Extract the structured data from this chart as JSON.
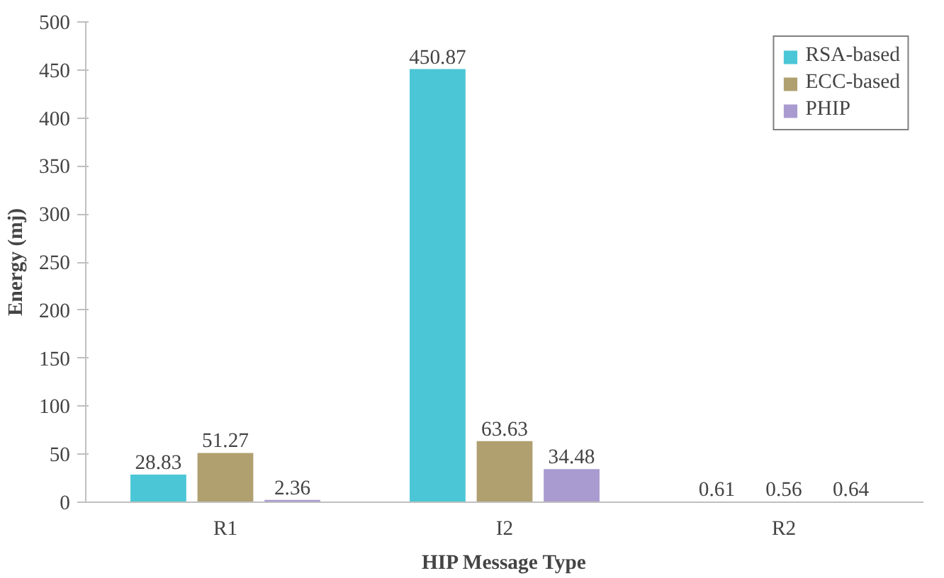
{
  "chart_data": {
    "type": "bar",
    "xlabel": "HIP Message Type",
    "ylabel": "Energy (mj)",
    "categories": [
      "R1",
      "I2",
      "R2"
    ],
    "series": [
      {
        "name": "RSA-based",
        "color": "#4bc6d6",
        "values": [
          28.83,
          450.87,
          0.61
        ]
      },
      {
        "name": "ECC-based",
        "color": "#b0a070",
        "values": [
          51.27,
          63.63,
          0.56
        ]
      },
      {
        "name": "PHIP",
        "color": "#a99bd0",
        "values": [
          2.36,
          34.48,
          0.64
        ]
      }
    ],
    "ylim": [
      0,
      500
    ],
    "yticks": [
      0,
      50,
      100,
      150,
      200,
      250,
      300,
      350,
      400,
      450,
      500
    ],
    "grid": false,
    "legend": "top right",
    "data_labels": true
  }
}
